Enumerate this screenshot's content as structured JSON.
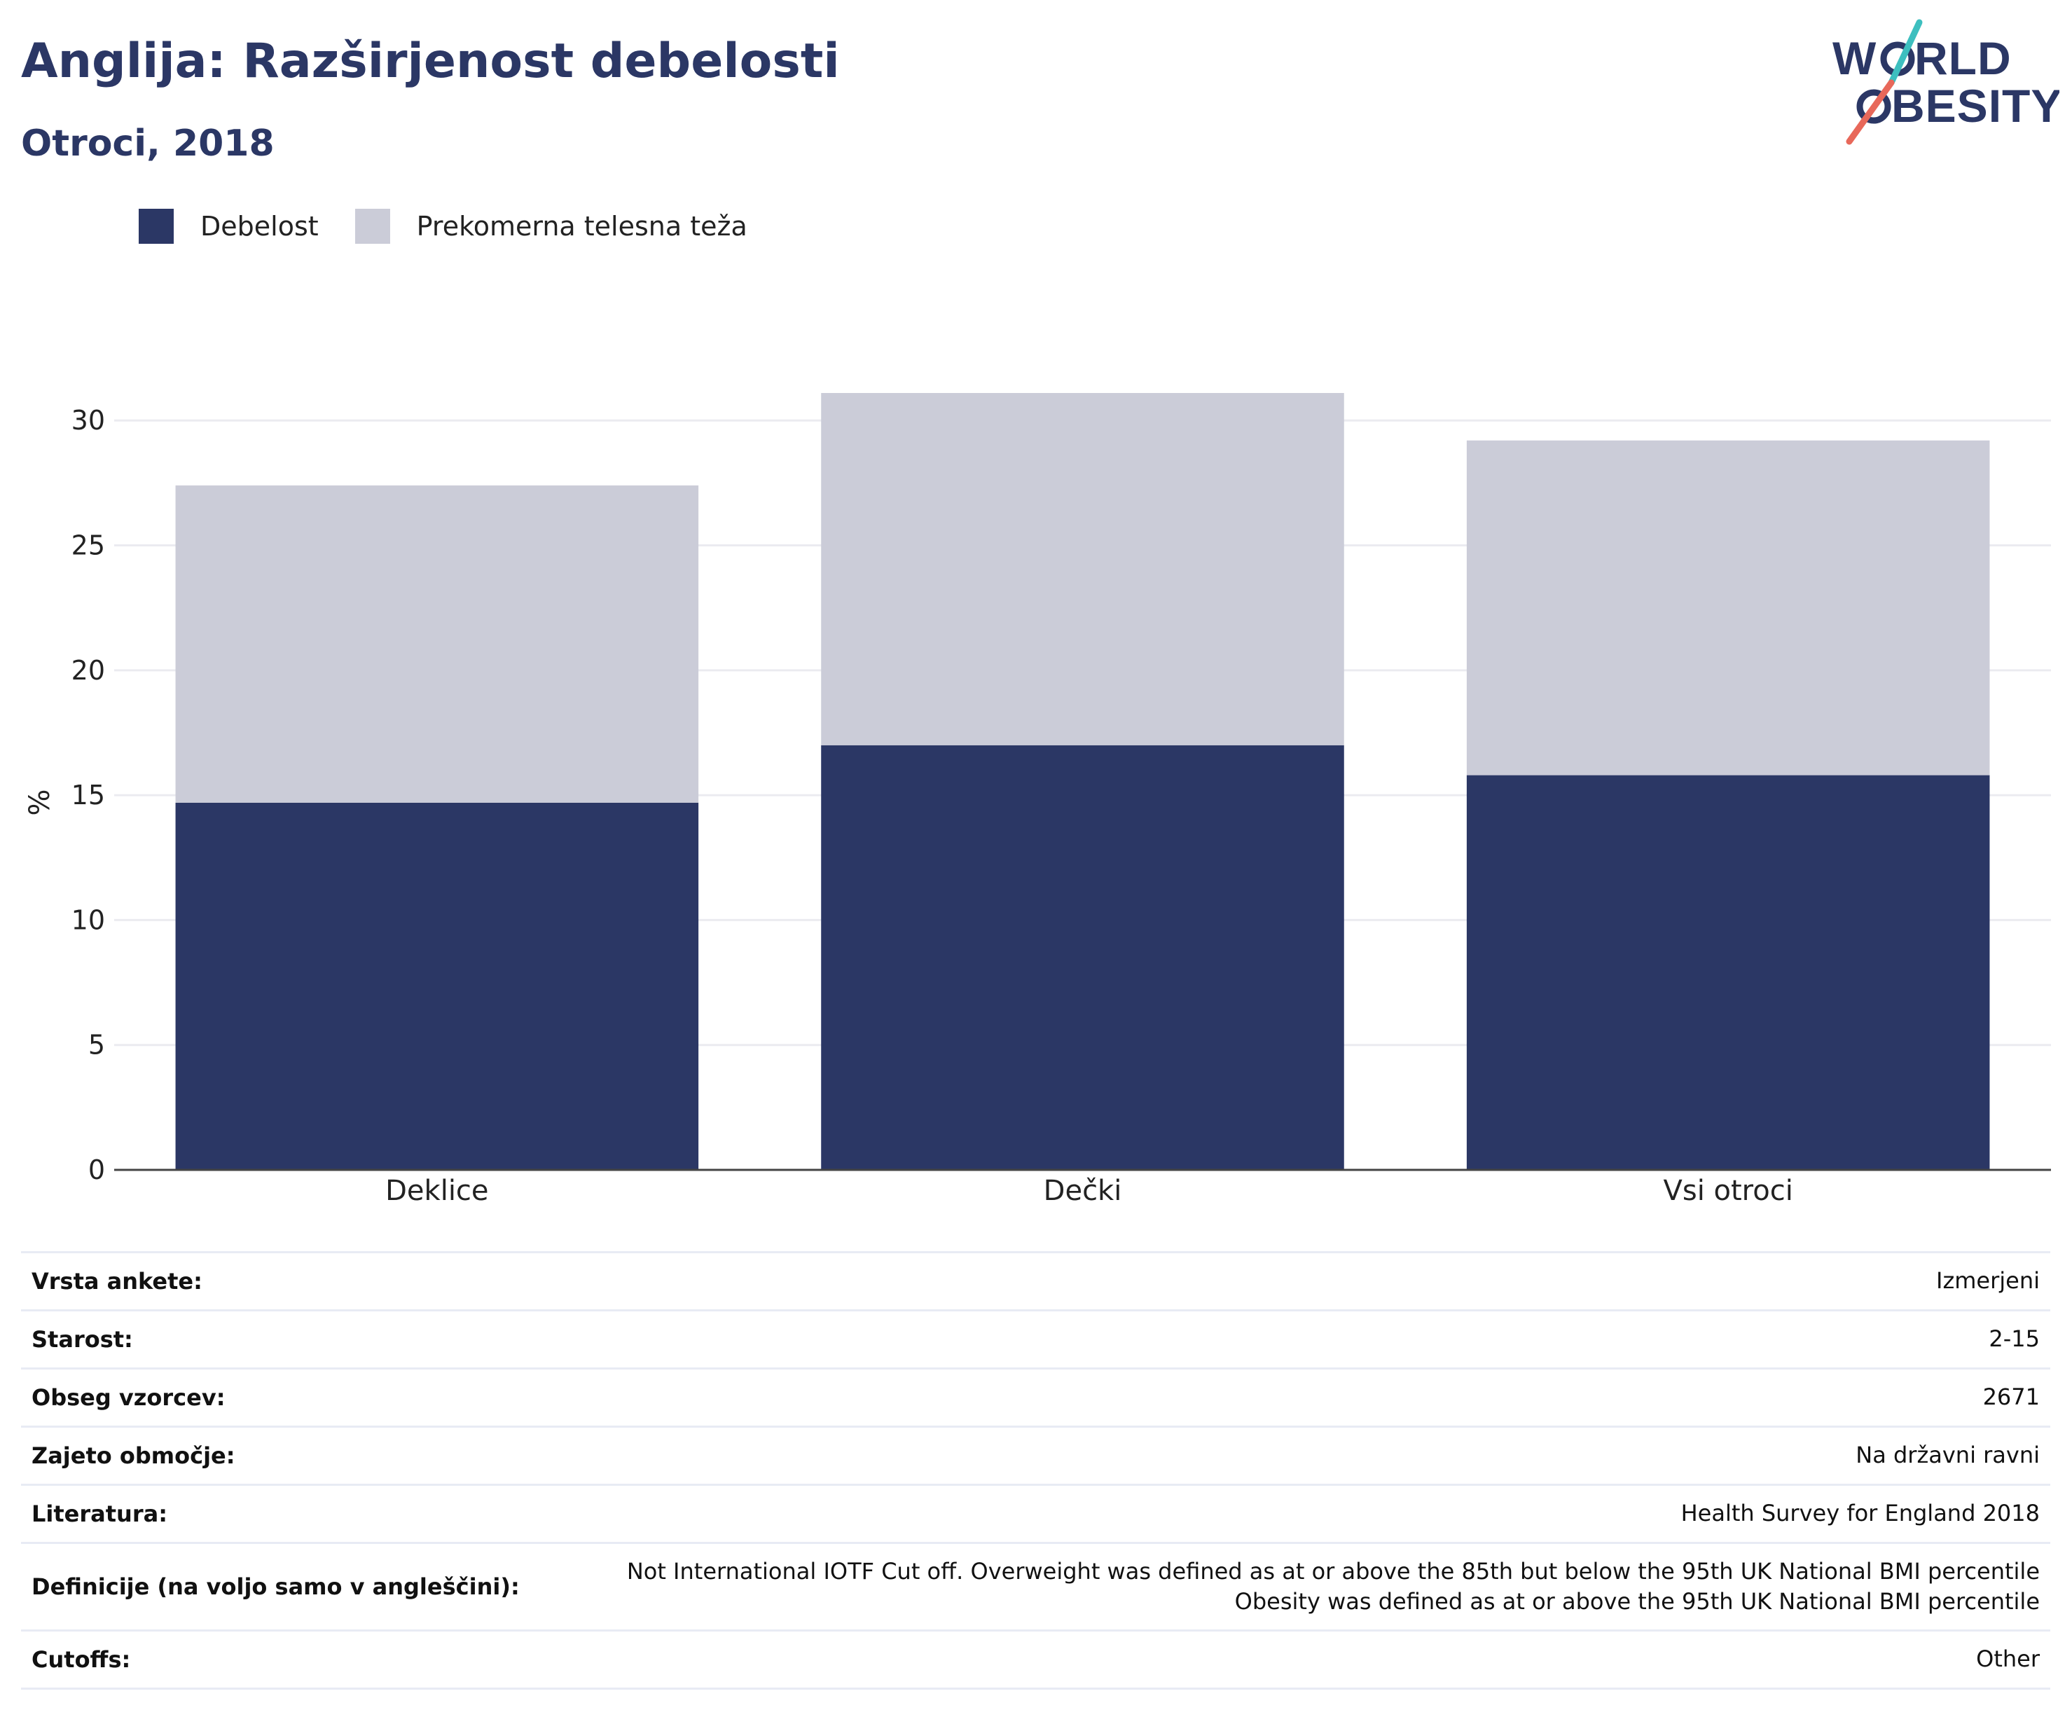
{
  "header": {
    "title": "Anglija: Razširjenost debelosti",
    "subtitle": "Otroci, 2018"
  },
  "logo": {
    "line1": "W RLD",
    "line2": " BESITY",
    "text": "WORLD OBESITY"
  },
  "colors": {
    "obesity": "#2b3765",
    "overweight": "#cbccd8",
    "title": "#2b3765",
    "logo_teal": "#3dbfbf",
    "logo_coral": "#e8685a"
  },
  "chart_data": {
    "type": "bar",
    "stacked": true,
    "categories": [
      "Deklice",
      "Dečki",
      "Vsi otroci"
    ],
    "series": [
      {
        "name": "Debelost",
        "values": [
          14.7,
          17.0,
          15.8
        ]
      },
      {
        "name": "Prekomerna telesna teža",
        "values": [
          12.7,
          14.1,
          13.4
        ]
      }
    ],
    "ylabel": "%",
    "ylim": [
      0,
      31.1
    ],
    "yticks": [
      0,
      5,
      10,
      15,
      20,
      25,
      30
    ],
    "grid": true,
    "legend_position": "top-left"
  },
  "info": [
    {
      "key": "Vrsta ankete:",
      "value": "Izmerjeni"
    },
    {
      "key": "Starost:",
      "value": "2-15"
    },
    {
      "key": "Obseg vzorcev:",
      "value": "2671"
    },
    {
      "key": "Zajeto območje:",
      "value": "Na državni ravni"
    },
    {
      "key": "Literatura:",
      "value": "Health Survey for England 2018"
    },
    {
      "key": "Definicije (na voljo samo v angleščini):",
      "value": "Not International IOTF Cut off. Overweight was defined as at or above the 85th but below the 95th UK National BMI percentile Obesity was defined as at or above the 95th UK National BMI percentile"
    },
    {
      "key": "Cutoffs:",
      "value": "Other"
    }
  ]
}
